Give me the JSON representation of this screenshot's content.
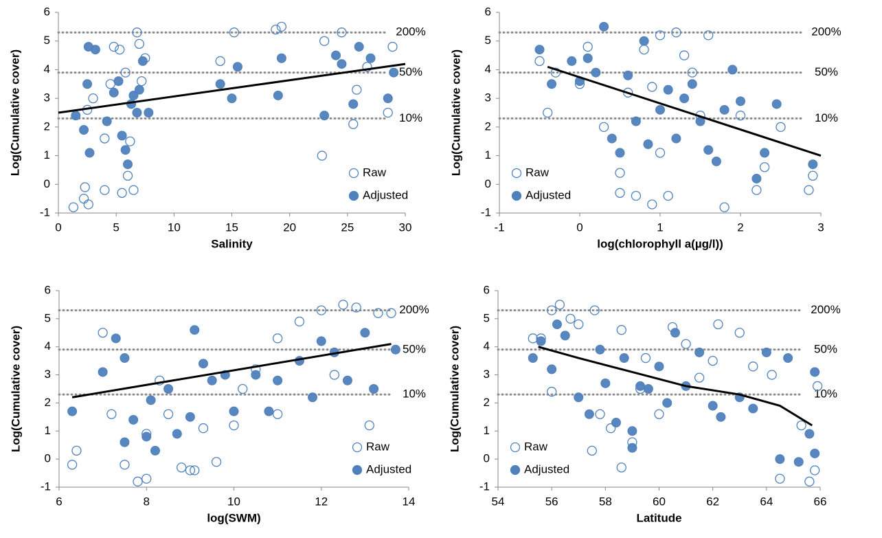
{
  "chart_data": [
    {
      "type": "scatter",
      "xlabel": "Salinity",
      "ylabel": "Log(Cumulative cover)",
      "xlim": [
        0,
        30
      ],
      "xticks": [
        0,
        5,
        10,
        15,
        20,
        25,
        30
      ],
      "ylim": [
        -1,
        6
      ],
      "yticks": [
        -1,
        0,
        1,
        2,
        3,
        4,
        5,
        6
      ],
      "legend": "lower right",
      "color": "#4f81bd",
      "reference_lines": [
        {
          "value": 2.3,
          "label": "10%"
        },
        {
          "value": 3.9,
          "label": "50%"
        },
        {
          "value": 5.3,
          "label": "200%"
        }
      ],
      "trend": {
        "x": [
          0,
          30
        ],
        "y": [
          2.5,
          4.2
        ]
      },
      "series": [
        {
          "name": "Raw",
          "filled": false,
          "x": [
            1.3,
            2.2,
            2.3,
            2.6,
            2.5,
            3,
            4,
            4,
            4.8,
            5.3,
            5.5,
            6,
            6.5,
            6.8,
            7,
            7.5,
            14,
            15.2,
            18.8,
            19.3,
            22.8,
            23,
            24.5,
            25.5,
            25.8,
            26.7,
            28.5,
            28.9,
            5.8,
            6.2,
            4.5,
            7.2
          ],
          "values": [
            -0.8,
            -0.5,
            -0.1,
            -0.7,
            2.6,
            3,
            -0.2,
            1.6,
            4.8,
            4.7,
            -0.3,
            0.3,
            -0.2,
            5.3,
            4.9,
            4.4,
            4.3,
            5.3,
            5.4,
            5.5,
            1,
            5,
            5.3,
            2.1,
            3.3,
            4.1,
            2.5,
            4.8,
            3.9,
            1.5,
            3.5,
            3.6
          ]
        },
        {
          "name": "Adjusted",
          "filled": true,
          "x": [
            1.5,
            2.2,
            2.5,
            2.6,
            2.7,
            3.2,
            4.2,
            4.8,
            5.2,
            5.5,
            5.8,
            6,
            6.3,
            6.5,
            6.8,
            7,
            7.3,
            7.8,
            14,
            15,
            15.5,
            19,
            19.3,
            23,
            24,
            24.5,
            25.5,
            26,
            27,
            28.5,
            29
          ],
          "values": [
            2.4,
            1.9,
            3.5,
            4.8,
            1.1,
            4.7,
            2.2,
            3.2,
            3.6,
            1.7,
            1.2,
            0.7,
            2.8,
            3.1,
            2.5,
            3.3,
            4.3,
            2.5,
            3.5,
            3,
            4.1,
            3.1,
            4.4,
            2.4,
            4.5,
            4.2,
            2.8,
            4.8,
            4.4,
            3,
            3.9
          ]
        }
      ]
    },
    {
      "type": "scatter",
      "xlabel": "log(chlorophyll a(µg/l))",
      "ylabel": "Log(Cumulative cover)",
      "xlim": [
        -1,
        3
      ],
      "xticks": [
        -1,
        0,
        1,
        2,
        3
      ],
      "ylim": [
        -1,
        6
      ],
      "yticks": [
        -1,
        0,
        1,
        2,
        3,
        4,
        5,
        6
      ],
      "legend": "lower left",
      "color": "#4f81bd",
      "reference_lines": [
        {
          "value": 2.3,
          "label": "10%"
        },
        {
          "value": 3.9,
          "label": "50%"
        },
        {
          "value": 5.3,
          "label": "200%"
        }
      ],
      "trend": {
        "x": [
          -0.4,
          3
        ],
        "y": [
          4.1,
          1.0
        ]
      },
      "series": [
        {
          "name": "Raw",
          "filled": false,
          "x": [
            -0.5,
            -0.4,
            -0.3,
            0,
            0.1,
            0.3,
            0.5,
            0.5,
            0.6,
            0.7,
            0.8,
            0.9,
            1,
            1,
            1.1,
            1.2,
            1.3,
            1.5,
            1.6,
            1.8,
            2,
            2.2,
            2.3,
            2.5,
            2.85,
            2.9,
            1.4,
            0.9
          ],
          "values": [
            4.3,
            2.5,
            3.9,
            3.5,
            4.8,
            2,
            0.4,
            -0.3,
            3.2,
            -0.4,
            4.7,
            -0.7,
            5.2,
            1.1,
            -0.4,
            5.3,
            4.5,
            2.4,
            5.2,
            -0.8,
            2.4,
            -0.2,
            0.6,
            2,
            -0.2,
            0.3,
            3.9,
            3.4
          ]
        },
        {
          "name": "Adjusted",
          "filled": true,
          "x": [
            -0.5,
            -0.35,
            -0.1,
            0,
            0.1,
            0.3,
            0.4,
            0.5,
            0.6,
            0.7,
            0.8,
            0.85,
            1,
            1.1,
            1.2,
            1.3,
            1.5,
            1.6,
            1.7,
            1.8,
            1.9,
            2,
            2.2,
            2.3,
            2.45,
            2.9,
            0.2,
            1.4
          ],
          "values": [
            4.7,
            3.5,
            4.3,
            3.6,
            4.4,
            5.5,
            1.6,
            1.1,
            3.8,
            2.2,
            5,
            1.4,
            2.6,
            3.3,
            1.6,
            3,
            2.2,
            1.2,
            0.8,
            2.6,
            4,
            2.9,
            0.2,
            1.1,
            2.8,
            0.7,
            3.9,
            3.5
          ]
        }
      ]
    },
    {
      "type": "scatter",
      "xlabel": "log(SWM)",
      "ylabel": "Log(Cumulative cover)",
      "xlim": [
        6,
        14
      ],
      "xticks": [
        6,
        8,
        10,
        12,
        14
      ],
      "ylim": [
        -1,
        6
      ],
      "yticks": [
        -1,
        0,
        1,
        2,
        3,
        4,
        5,
        6
      ],
      "legend": "lower right",
      "color": "#4f81bd",
      "reference_lines": [
        {
          "value": 2.3,
          "label": "10%"
        },
        {
          "value": 3.9,
          "label": "50%"
        },
        {
          "value": 5.3,
          "label": "200%"
        }
      ],
      "trend": {
        "x": [
          6.3,
          13.6
        ],
        "y": [
          2.2,
          4.1
        ]
      },
      "series": [
        {
          "name": "Raw",
          "filled": false,
          "x": [
            6.3,
            6.4,
            7,
            7.2,
            7.5,
            7.8,
            8,
            8,
            8.5,
            8.8,
            9,
            9.1,
            9.3,
            9.6,
            10,
            10.5,
            11,
            11,
            11.5,
            12,
            12.5,
            12.8,
            13.1,
            13.3,
            13.6,
            8.3,
            10.2,
            12.3
          ],
          "values": [
            -0.2,
            0.3,
            4.5,
            1.6,
            -0.2,
            -0.8,
            -0.7,
            0.9,
            1.6,
            -0.3,
            -0.4,
            -0.4,
            1.1,
            -0.1,
            1.2,
            3.2,
            4.3,
            1.6,
            4.9,
            5.3,
            5.5,
            5.4,
            1.2,
            5.2,
            5.2,
            2.8,
            2.5,
            3
          ]
        },
        {
          "name": "Adjusted",
          "filled": true,
          "x": [
            6.3,
            7,
            7.3,
            7.5,
            7.5,
            7.7,
            8,
            8.1,
            8.2,
            8.5,
            8.7,
            9,
            9.1,
            9.3,
            9.5,
            10,
            10.5,
            10.8,
            11,
            11.5,
            11.8,
            12,
            12.3,
            12.6,
            13,
            13.2,
            13.7,
            9.8
          ],
          "values": [
            1.7,
            3.1,
            4.3,
            0.6,
            3.6,
            1.4,
            0.8,
            2.1,
            0.3,
            2.5,
            0.9,
            1.5,
            4.6,
            3.4,
            2.8,
            1.7,
            3,
            1.7,
            2.8,
            3.5,
            2.2,
            4.2,
            3.8,
            2.8,
            4.5,
            2.5,
            3.9,
            3
          ]
        }
      ]
    },
    {
      "type": "scatter",
      "xlabel": "Latitude",
      "ylabel": "Log(Cumulative cover)",
      "xlim": [
        54,
        66
      ],
      "xticks": [
        54,
        56,
        58,
        60,
        62,
        64,
        66
      ],
      "ylim": [
        -1,
        6
      ],
      "yticks": [
        -1,
        0,
        1,
        2,
        3,
        4,
        5,
        6
      ],
      "legend": "lower left",
      "color": "#4f81bd",
      "reference_lines": [
        {
          "value": 2.3,
          "label": "10%"
        },
        {
          "value": 3.9,
          "label": "50%"
        },
        {
          "value": 5.3,
          "label": "200%"
        }
      ],
      "trend": {
        "x": [
          55.5,
          57,
          59,
          61,
          63,
          64.5,
          65.7
        ],
        "y": [
          4.0,
          3.6,
          3.1,
          2.6,
          2.3,
          1.9,
          1.2
        ]
      },
      "series": [
        {
          "name": "Raw",
          "filled": false,
          "x": [
            55.3,
            55.6,
            56,
            56,
            56.3,
            56.7,
            57,
            57.5,
            57.6,
            57.8,
            58.2,
            58.6,
            58.6,
            59,
            59.3,
            60,
            60.5,
            61,
            62,
            62.2,
            63,
            63.5,
            64.2,
            64.5,
            65.3,
            65.6,
            65.8,
            65.9,
            61.5,
            59.5
          ],
          "values": [
            4.3,
            4.3,
            5.3,
            2.4,
            5.5,
            5,
            4.8,
            0.3,
            5.3,
            1.6,
            1.1,
            -0.3,
            4.6,
            0.6,
            2.5,
            1.6,
            4.7,
            4.1,
            3.5,
            4.8,
            4.5,
            3.3,
            3,
            -0.7,
            1.2,
            -0.8,
            -0.4,
            2.6,
            2.9,
            3.6
          ]
        },
        {
          "name": "Adjusted",
          "filled": true,
          "x": [
            55.3,
            55.6,
            56,
            56.2,
            56.5,
            57,
            57.4,
            57.8,
            58,
            58.4,
            58.7,
            59,
            59,
            59.3,
            59.6,
            60,
            60.3,
            60.6,
            61,
            61.5,
            62,
            62.3,
            63,
            63.5,
            64,
            64.5,
            64.8,
            65.2,
            65.6,
            65.8,
            65.8
          ],
          "values": [
            3.6,
            4.2,
            3.2,
            4.8,
            4.4,
            2.2,
            1.6,
            3.9,
            2.7,
            1.3,
            3.6,
            1,
            0.4,
            2.6,
            2.5,
            3.3,
            2,
            4.5,
            2.6,
            3.8,
            1.9,
            1.5,
            2.2,
            1.8,
            3.8,
            0,
            3.6,
            -0.1,
            0.9,
            3.1,
            0.2
          ]
        }
      ]
    }
  ]
}
